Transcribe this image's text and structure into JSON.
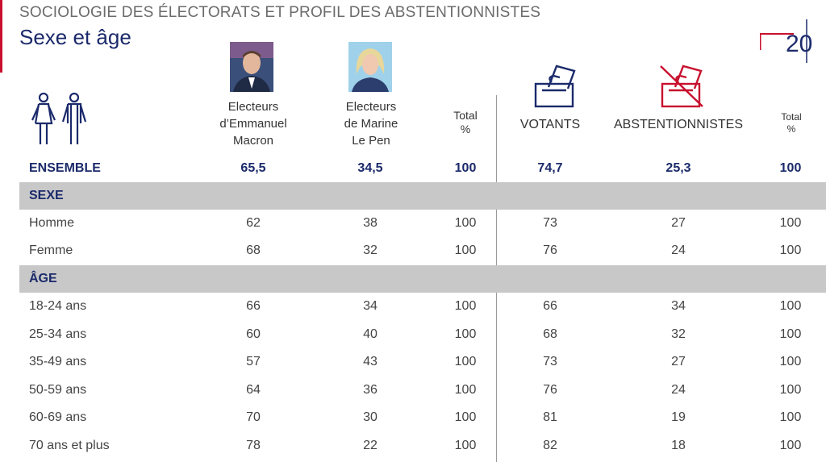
{
  "header": {
    "kicker": "SOCIOLOGIE DES ÉLECTORATS ET PROFIL DES ABSTENTIONNISTES",
    "subtitle": "Sexe et âge",
    "logo_text": "20"
  },
  "columns": {
    "macron": [
      "Electeurs",
      "d’Emmanuel",
      "Macron"
    ],
    "lepen": [
      "Electeurs",
      "de Marine",
      "Le Pen"
    ],
    "total1": [
      "Total",
      "%"
    ],
    "votants": "VOTANTS",
    "abstentionnistes": "ABSTENTIONNISTES",
    "total2": [
      "Total",
      "%"
    ]
  },
  "ensemble": {
    "label": "ENSEMBLE",
    "values": [
      "65,5",
      "34,5",
      "100",
      "74,7",
      "25,3",
      "100"
    ]
  },
  "sections": [
    {
      "title": "SEXE",
      "rows": [
        {
          "label": "Homme",
          "values": [
            "62",
            "38",
            "100",
            "73",
            "27",
            "100"
          ]
        },
        {
          "label": "Femme",
          "values": [
            "68",
            "32",
            "100",
            "76",
            "24",
            "100"
          ]
        }
      ]
    },
    {
      "title": "ÂGE",
      "rows": [
        {
          "label": "18-24 ans",
          "values": [
            "66",
            "34",
            "100",
            "66",
            "34",
            "100"
          ]
        },
        {
          "label": "25-34 ans",
          "values": [
            "60",
            "40",
            "100",
            "68",
            "32",
            "100"
          ]
        },
        {
          "label": "35-49 ans",
          "values": [
            "57",
            "43",
            "100",
            "73",
            "27",
            "100"
          ]
        },
        {
          "label": "50-59 ans",
          "values": [
            "64",
            "36",
            "100",
            "76",
            "24",
            "100"
          ]
        },
        {
          "label": "60-69 ans",
          "values": [
            "70",
            "30",
            "100",
            "81",
            "19",
            "100"
          ]
        },
        {
          "label": "70 ans et plus",
          "values": [
            "78",
            "22",
            "100",
            "82",
            "18",
            "100"
          ]
        }
      ]
    }
  ],
  "icons": {
    "people": "man-woman-icon",
    "vote": "ballot-box-icon",
    "abstain": "crossed-ballot-icon",
    "macron_photo": "macron-portrait",
    "lepen_photo": "lepen-portrait"
  },
  "colors": {
    "navy": "#1b2a6b",
    "red": "#c8102e",
    "section_bg": "#c8c8c8"
  }
}
